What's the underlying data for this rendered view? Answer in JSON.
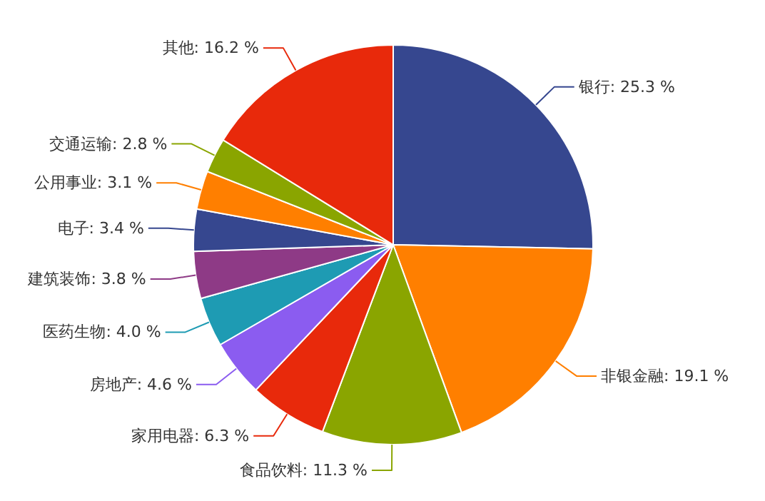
{
  "chart_data": {
    "type": "pie",
    "categories": [
      "银行",
      "非银金融",
      "食品饮料",
      "家用电器",
      "房地产",
      "医药生物",
      "建筑装饰",
      "电子",
      "公用事业",
      "交通运输",
      "其他"
    ],
    "values": [
      25.3,
      19.1,
      11.3,
      6.3,
      4.6,
      4.0,
      3.8,
      3.4,
      3.1,
      2.8,
      16.2
    ],
    "value_labels": [
      "25.3 %",
      "19.1 %",
      "11.3 %",
      "6.3 %",
      "4.6 %",
      "4.0 %",
      "3.8 %",
      "3.4 %",
      "3.1 %",
      "2.8 %",
      "16.2 %"
    ],
    "colors": [
      "#36478f",
      "#ff7f00",
      "#8aa500",
      "#e8290b",
      "#8b5cf0",
      "#1e9bb3",
      "#8e3a86",
      "#36478f",
      "#ff7f00",
      "#8aa500",
      "#e8290b"
    ]
  }
}
